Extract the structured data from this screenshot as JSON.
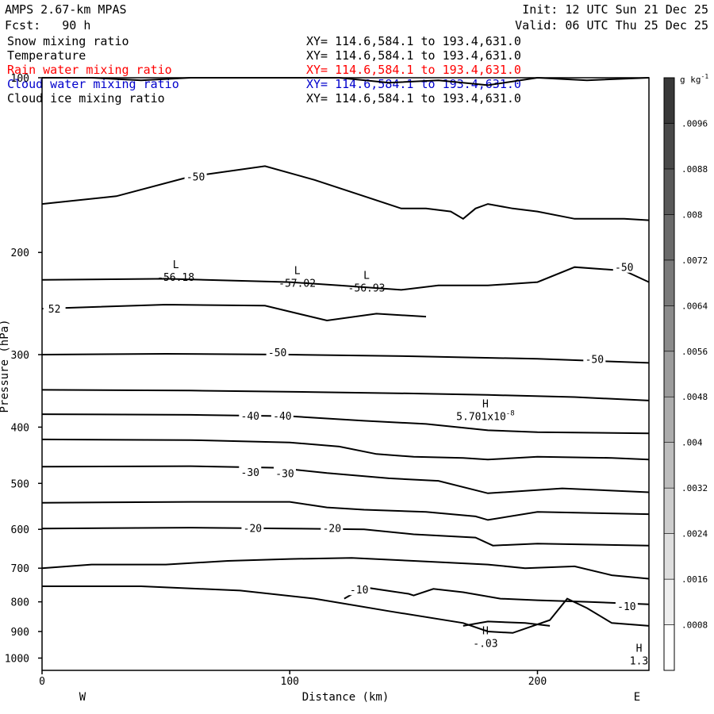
{
  "header": {
    "model": "AMPS 2.67-km MPAS",
    "fcst": "Fcst:   90 h",
    "init": "Init: 12 UTC Sun 21 Dec 25",
    "valid": "Valid: 06 UTC Thu 25 Dec 25"
  },
  "fields": [
    {
      "name": "Snow mixing ratio",
      "xy": "XY= 114.6,584.1 to 193.4,631.0",
      "color": "#000000"
    },
    {
      "name": "Temperature",
      "xy": "XY= 114.6,584.1 to 193.4,631.0",
      "color": "#000000"
    },
    {
      "name": "Rain water mixing ratio",
      "xy": "XY= 114.6,584.1 to 193.4,631.0",
      "color": "#ff0000"
    },
    {
      "name": "Cloud water mixing ratio",
      "xy": "XY= 114.6,584.1 to 193.4,631.0",
      "color": "#0000cc"
    },
    {
      "name": "Cloud ice mixing ratio",
      "xy": "XY= 114.6,584.1 to 193.4,631.0",
      "color": "#000000"
    }
  ],
  "chart_data": {
    "type": "line",
    "xlabel": "Distance (km)",
    "ylabel": "Pressure (hPa)",
    "xlim": [
      0,
      245
    ],
    "ylim": [
      100,
      1050
    ],
    "y_scale": "log",
    "xticks": [
      0,
      100,
      200
    ],
    "yticks": [
      100,
      200,
      300,
      400,
      500,
      600,
      700,
      800,
      900,
      1000
    ],
    "x_end_labels": {
      "left": "W",
      "right": "E"
    },
    "colorbar": {
      "unit": "g kg",
      "unit_exp": "-1",
      "labels": [
        ".0008",
        ".0016",
        ".0024",
        ".0032",
        ".004",
        ".0048",
        ".0056",
        ".0064",
        ".0072",
        ".008",
        ".0088",
        ".0096"
      ],
      "bins": 13
    },
    "contour_labels": [
      {
        "text": "-50",
        "x": 62,
        "p": 148
      },
      {
        "text": "-50",
        "x": 235,
        "p": 212
      },
      {
        "text": "-50",
        "x": 95,
        "p": 297
      },
      {
        "text": "-50",
        "x": 223,
        "p": 305
      },
      {
        "text": "-40",
        "x": 84,
        "p": 382
      },
      {
        "text": "-40",
        "x": 97,
        "p": 382
      },
      {
        "text": "-30",
        "x": 84,
        "p": 478
      },
      {
        "text": "-30",
        "x": 98,
        "p": 480
      },
      {
        "text": "-20",
        "x": 85,
        "p": 597
      },
      {
        "text": "-20",
        "x": 117,
        "p": 597
      },
      {
        "text": "-10",
        "x": 128,
        "p": 762
      },
      {
        "text": "-10",
        "x": 236,
        "p": 814
      },
      {
        "text": "52",
        "x": 5,
        "p": 250
      }
    ],
    "extrema": [
      {
        "kind": "L",
        "value": "-56.18",
        "x": 54,
        "p": 213
      },
      {
        "kind": "L",
        "value": "-57.02",
        "x": 103,
        "p": 218
      },
      {
        "kind": "L",
        "value": "-56.93",
        "x": 131,
        "p": 222
      },
      {
        "kind": "H",
        "value": "5.701x10",
        "exp": "-8",
        "x": 179,
        "p": 370
      },
      {
        "kind": "H",
        "value": "-.03",
        "x": 179,
        "p": 910
      },
      {
        "kind": "H",
        "value": "1.3",
        "x": 241,
        "p": 975
      }
    ],
    "series": [
      {
        "points": [
          [
            0,
            100
          ],
          [
            20,
            100
          ],
          [
            40,
            101
          ],
          [
            60,
            100
          ],
          [
            80,
            100
          ],
          [
            100,
            100
          ],
          [
            120,
            100
          ],
          [
            140,
            102
          ],
          [
            160,
            101
          ],
          [
            180,
            103
          ],
          [
            200,
            100
          ],
          [
            220,
            101
          ],
          [
            245,
            100
          ]
        ]
      },
      {
        "points": [
          [
            0,
            165
          ],
          [
            30,
            160
          ],
          [
            60,
            148
          ],
          [
            90,
            142
          ],
          [
            110,
            150
          ],
          [
            130,
            160
          ],
          [
            145,
            168
          ],
          [
            155,
            168
          ],
          [
            165,
            170
          ],
          [
            170,
            175
          ],
          [
            175,
            168
          ],
          [
            180,
            165
          ],
          [
            190,
            168
          ],
          [
            200,
            170
          ],
          [
            215,
            175
          ],
          [
            235,
            175
          ],
          [
            245,
            176
          ]
        ]
      },
      {
        "points": [
          [
            0,
            223
          ],
          [
            50,
            222
          ],
          [
            100,
            225
          ],
          [
            120,
            228
          ],
          [
            145,
            232
          ],
          [
            160,
            228
          ],
          [
            180,
            228
          ],
          [
            200,
            225
          ],
          [
            215,
            212
          ],
          [
            235,
            215
          ],
          [
            245,
            225
          ]
        ]
      },
      {
        "points": [
          [
            0,
            250
          ],
          [
            50,
            246
          ],
          [
            90,
            247
          ],
          [
            115,
            262
          ],
          [
            135,
            255
          ],
          [
            155,
            258
          ]
        ]
      },
      {
        "points": [
          [
            0,
            300
          ],
          [
            50,
            299
          ],
          [
            100,
            300
          ],
          [
            150,
            302
          ],
          [
            200,
            305
          ],
          [
            245,
            310
          ]
        ]
      },
      {
        "points": [
          [
            0,
            345
          ],
          [
            60,
            346
          ],
          [
            110,
            348
          ],
          [
            150,
            350
          ],
          [
            180,
            352
          ],
          [
            215,
            355
          ],
          [
            245,
            360
          ]
        ]
      },
      {
        "points": [
          [
            0,
            380
          ],
          [
            60,
            381
          ],
          [
            100,
            383
          ],
          [
            130,
            390
          ],
          [
            155,
            395
          ],
          [
            180,
            405
          ],
          [
            200,
            408
          ],
          [
            245,
            410
          ]
        ]
      },
      {
        "points": [
          [
            0,
            420
          ],
          [
            60,
            421
          ],
          [
            100,
            425
          ],
          [
            120,
            432
          ],
          [
            135,
            445
          ],
          [
            150,
            450
          ],
          [
            170,
            452
          ],
          [
            180,
            455
          ],
          [
            200,
            450
          ],
          [
            230,
            452
          ],
          [
            245,
            455
          ]
        ]
      },
      {
        "points": [
          [
            0,
            468
          ],
          [
            60,
            467
          ],
          [
            95,
            470
          ],
          [
            115,
            480
          ],
          [
            140,
            490
          ],
          [
            160,
            495
          ],
          [
            180,
            520
          ],
          [
            210,
            510
          ],
          [
            245,
            518
          ]
        ]
      },
      {
        "points": [
          [
            0,
            540
          ],
          [
            60,
            538
          ],
          [
            100,
            538
          ],
          [
            115,
            550
          ],
          [
            130,
            555
          ],
          [
            155,
            560
          ],
          [
            175,
            570
          ],
          [
            180,
            578
          ],
          [
            200,
            560
          ],
          [
            245,
            565
          ]
        ]
      },
      {
        "points": [
          [
            0,
            598
          ],
          [
            60,
            596
          ],
          [
            100,
            598
          ],
          [
            130,
            600
          ],
          [
            150,
            612
          ],
          [
            175,
            620
          ],
          [
            182,
            640
          ],
          [
            200,
            635
          ],
          [
            245,
            640
          ]
        ]
      },
      {
        "points": [
          [
            0,
            700
          ],
          [
            20,
            690
          ],
          [
            50,
            690
          ],
          [
            75,
            680
          ],
          [
            100,
            675
          ],
          [
            125,
            672
          ],
          [
            150,
            680
          ],
          [
            180,
            690
          ],
          [
            195,
            700
          ],
          [
            215,
            695
          ],
          [
            230,
            720
          ],
          [
            245,
            730
          ]
        ]
      },
      {
        "points": [
          [
            0,
            752
          ],
          [
            40,
            752
          ],
          [
            80,
            765
          ],
          [
            110,
            790
          ],
          [
            140,
            830
          ],
          [
            170,
            870
          ],
          [
            180,
            900
          ],
          [
            190,
            905
          ],
          [
            205,
            860
          ],
          [
            212,
            790
          ],
          [
            220,
            820
          ],
          [
            230,
            870
          ],
          [
            245,
            880
          ]
        ]
      },
      {
        "points": [
          [
            170,
            880
          ],
          [
            180,
            865
          ],
          [
            195,
            870
          ],
          [
            205,
            880
          ]
        ]
      },
      {
        "points": [
          [
            122,
            790
          ],
          [
            130,
            755
          ],
          [
            148,
            775
          ],
          [
            150,
            780
          ],
          [
            158,
            760
          ],
          [
            170,
            770
          ],
          [
            185,
            790
          ],
          [
            200,
            795
          ],
          [
            220,
            800
          ],
          [
            245,
            808
          ]
        ]
      }
    ]
  }
}
